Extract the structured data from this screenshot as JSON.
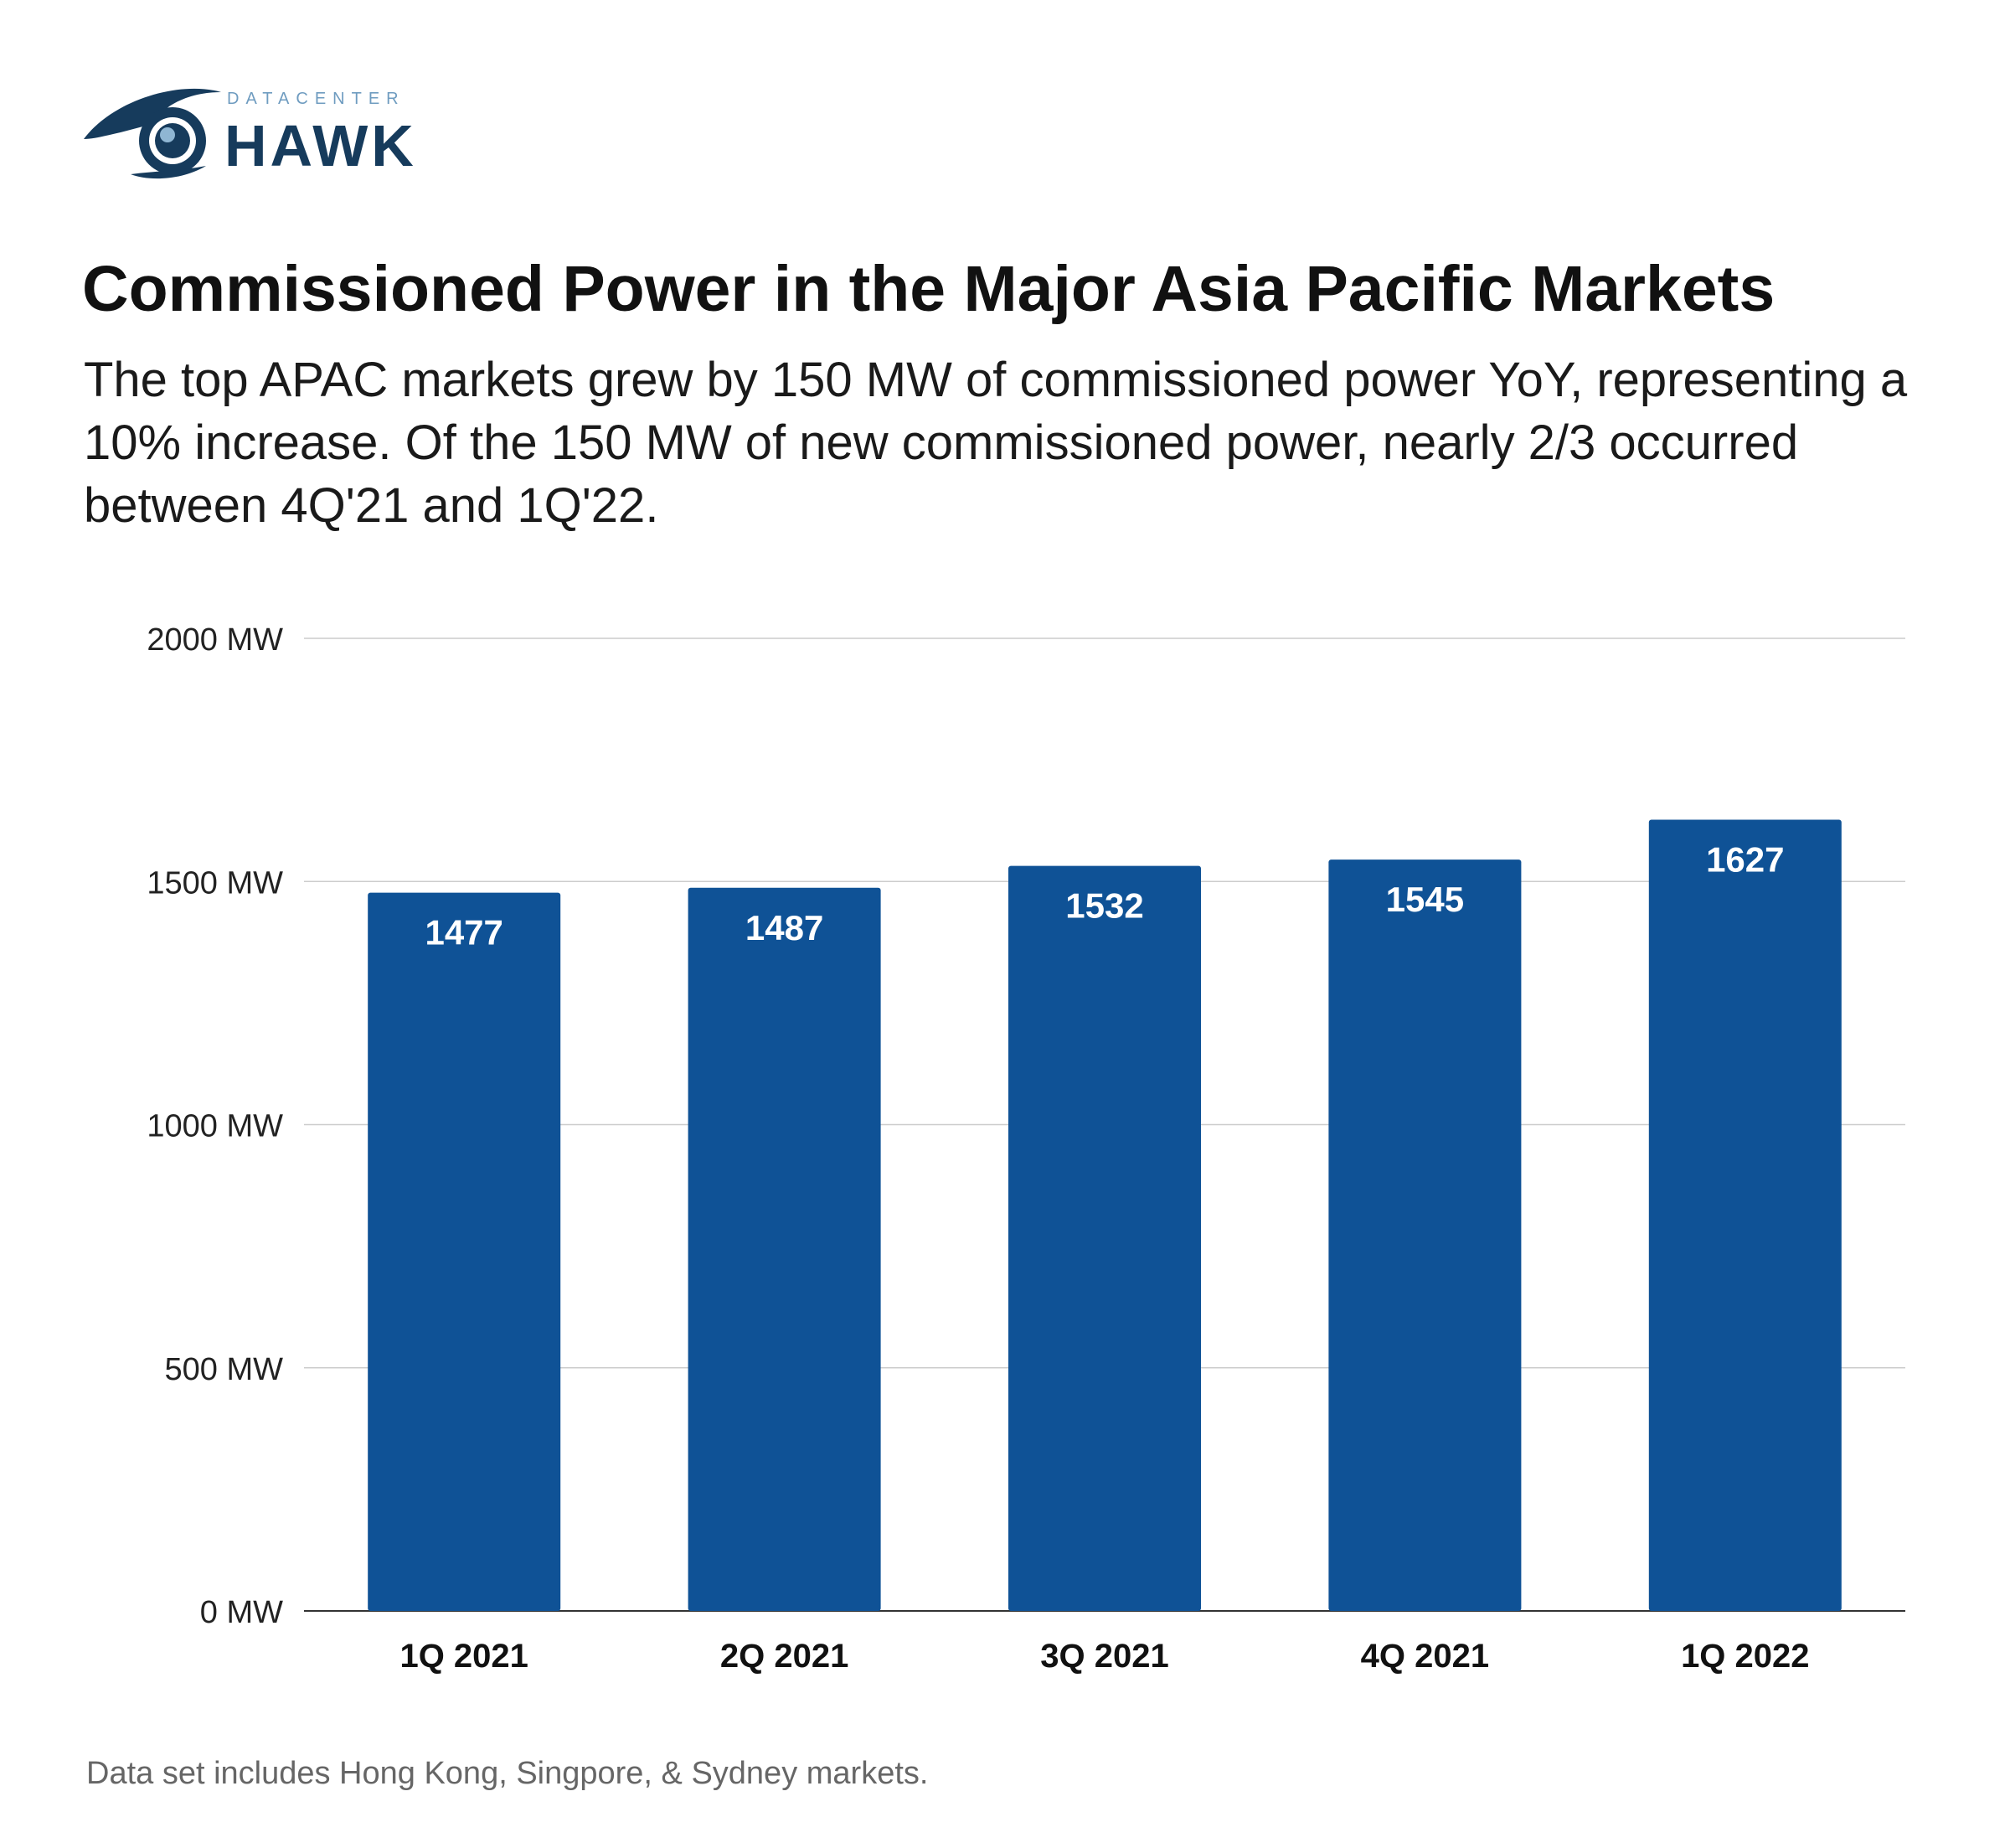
{
  "brand": {
    "logo_top": "DATACENTER",
    "logo_main": "HAWK",
    "primary_color": "#163b5c",
    "accent_color": "#8fb6d3"
  },
  "header": {
    "title": "Commissioned Power in the Major Asia Pacific Markets",
    "subtitle": "The top APAC markets grew by 150 MW of commissioned power YoY, representing a 10% increase. Of the 150 MW of new commissioned power, nearly 2/3 occurred between 4Q'21 and 1Q'22."
  },
  "chart_data": {
    "type": "bar",
    "title": "Commissioned Power in the Major Asia Pacific Markets",
    "categories": [
      "1Q 2021",
      "2Q 2021",
      "3Q 2021",
      "4Q 2021",
      "1Q 2022"
    ],
    "values": [
      1477,
      1487,
      1532,
      1545,
      1627
    ],
    "value_labels": [
      "1477",
      "1487",
      "1532",
      "1545",
      "1627"
    ],
    "xlabel": "",
    "ylabel": "",
    "ylim": [
      0,
      2000
    ],
    "yticks": [
      0,
      500,
      1000,
      1500,
      2000
    ],
    "ytick_labels": [
      "0 MW",
      "500 MW",
      "1000 MW",
      "1500 MW",
      "2000 MW"
    ],
    "grid": true,
    "legend": "none",
    "bar_color": "#0f5296",
    "grid_color": "#cccccc"
  },
  "footnote": "Data set includes Hong Kong, Singpore, & Sydney markets."
}
